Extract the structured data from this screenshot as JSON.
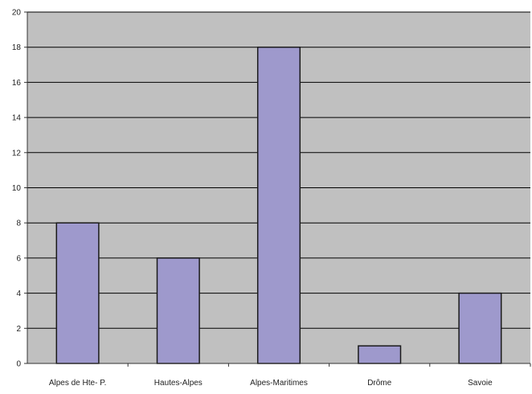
{
  "chart_data": {
    "type": "bar",
    "categories": [
      "Alpes de Hte- P.",
      "Hautes-Alpes",
      "Alpes-Maritimes",
      "Drôme",
      "Savoie"
    ],
    "values": [
      8,
      6,
      18,
      1,
      4
    ],
    "ylim": [
      0,
      20
    ],
    "yticks": [
      0,
      2,
      4,
      6,
      8,
      10,
      12,
      14,
      16,
      18,
      20
    ],
    "grid": true,
    "legend": "none",
    "colors": {
      "bar_fill": "#9e99cc",
      "bar_stroke": "#1a1a1a",
      "plot_bg": "#c0c0c0",
      "gridline": "#000000"
    }
  }
}
